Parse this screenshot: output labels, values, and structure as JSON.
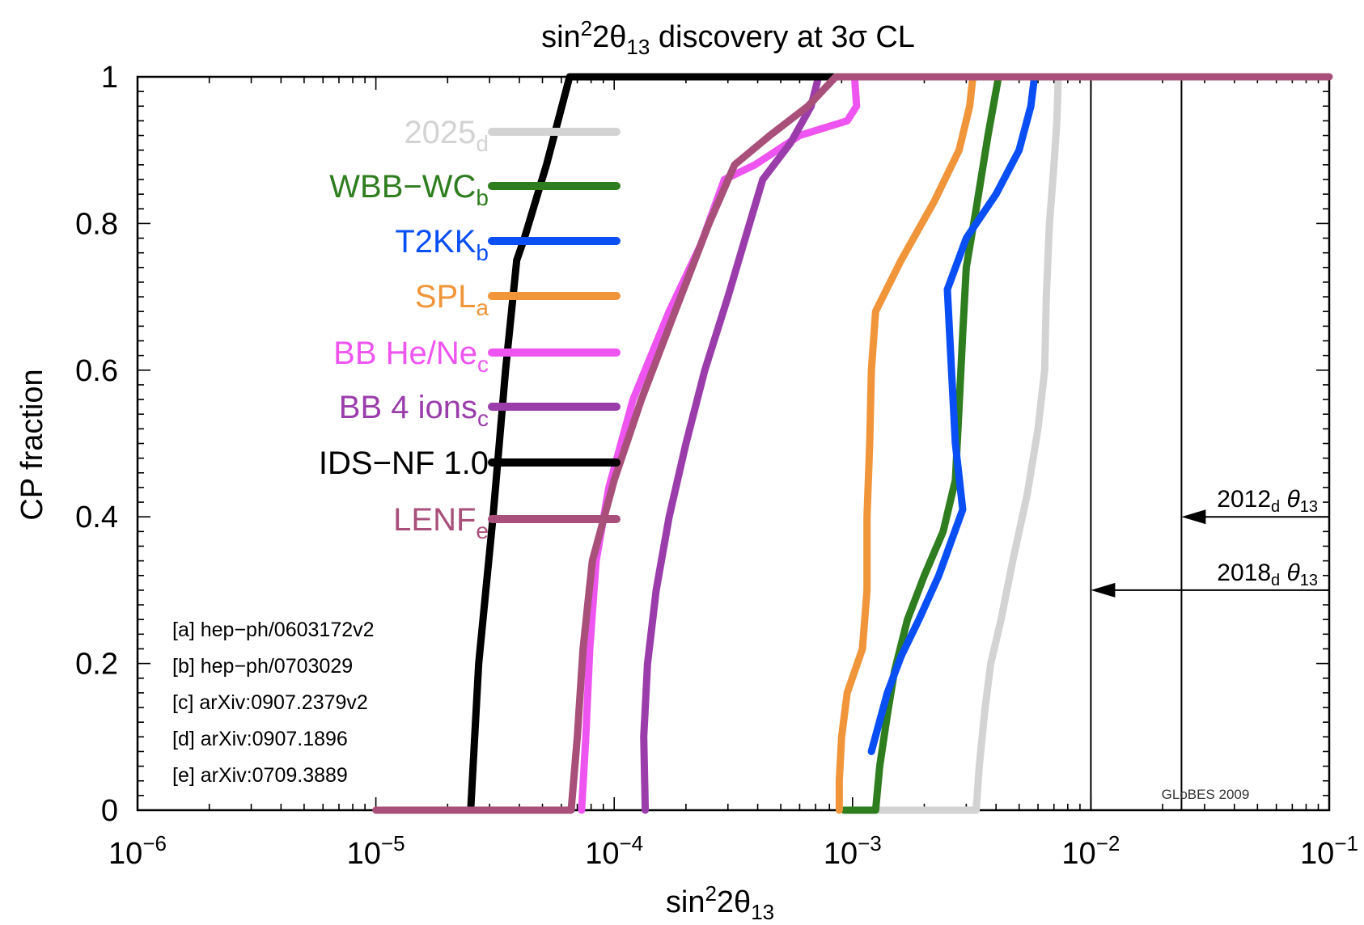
{
  "chart_data": {
    "type": "line",
    "title": {
      "pre": "sin",
      "sup": "2",
      "mid": "2θ",
      "sub": "13",
      "post": " discovery at 3σ CL"
    },
    "xlabel": {
      "pre": "sin",
      "sup": "2",
      "mid": "2θ",
      "sub": "13"
    },
    "ylabel": "CP fraction",
    "x_scale": "log",
    "xlim": [
      1e-06,
      0.1
    ],
    "ylim": [
      0,
      1
    ],
    "x_ticks": [
      {
        "base": "10",
        "exp": "−6",
        "value": 1e-06
      },
      {
        "base": "10",
        "exp": "−5",
        "value": 1e-05
      },
      {
        "base": "10",
        "exp": "−4",
        "value": 0.0001
      },
      {
        "base": "10",
        "exp": "−3",
        "value": 0.001
      },
      {
        "base": "10",
        "exp": "−2",
        "value": 0.01
      },
      {
        "base": "10",
        "exp": "−1",
        "value": 0.1
      }
    ],
    "y_ticks": [
      "0",
      "0.2",
      "0.4",
      "0.6",
      "0.8",
      "1"
    ],
    "legend_position": "left, inside plot",
    "series": [
      {
        "name": "2025",
        "sub": "d",
        "color": "#d3d3d3",
        "points": [
          [
            0.00105,
            0
          ],
          [
            0.0033,
            0
          ],
          [
            0.0034,
            0.06
          ],
          [
            0.0036,
            0.14
          ],
          [
            0.0038,
            0.2
          ],
          [
            0.0042,
            0.26
          ],
          [
            0.0047,
            0.34
          ],
          [
            0.0054,
            0.43
          ],
          [
            0.006,
            0.52
          ],
          [
            0.0064,
            0.6
          ],
          [
            0.0065,
            0.7
          ],
          [
            0.0067,
            0.8
          ],
          [
            0.007,
            0.88
          ],
          [
            0.0072,
            0.94
          ],
          [
            0.0073,
            1
          ]
        ]
      },
      {
        "name": "WBB−WC",
        "sub": "b",
        "color": "#2e7d1e",
        "points": [
          [
            0.00092,
            0
          ],
          [
            0.00125,
            0
          ],
          [
            0.0013,
            0.06
          ],
          [
            0.0014,
            0.13
          ],
          [
            0.0015,
            0.19
          ],
          [
            0.0017,
            0.26
          ],
          [
            0.002,
            0.32
          ],
          [
            0.0024,
            0.38
          ],
          [
            0.0027,
            0.45
          ],
          [
            0.0028,
            0.55
          ],
          [
            0.0029,
            0.65
          ],
          [
            0.003,
            0.74
          ],
          [
            0.0033,
            0.82
          ],
          [
            0.0037,
            0.92
          ],
          [
            0.0041,
            1
          ]
        ]
      },
      {
        "name": "T2KK",
        "sub": "b",
        "color": "#0a4ff5",
        "points": [
          [
            0.0012,
            0.08
          ],
          [
            0.0014,
            0.16
          ],
          [
            0.0016,
            0.21
          ],
          [
            0.0019,
            0.26
          ],
          [
            0.0023,
            0.32
          ],
          [
            0.0029,
            0.41
          ],
          [
            0.0027,
            0.5
          ],
          [
            0.0026,
            0.6
          ],
          [
            0.0025,
            0.71
          ],
          [
            0.003,
            0.78
          ],
          [
            0.004,
            0.84
          ],
          [
            0.005,
            0.9
          ],
          [
            0.0056,
            0.96
          ],
          [
            0.0058,
            1
          ]
        ]
      },
      {
        "name": "SPL",
        "sub": "a",
        "color": "#f0953a",
        "points": [
          [
            0.00088,
            0
          ],
          [
            0.00088,
            0.04
          ],
          [
            0.0009,
            0.1
          ],
          [
            0.00095,
            0.16
          ],
          [
            0.0011,
            0.22
          ],
          [
            0.00115,
            0.3
          ],
          [
            0.00115,
            0.4
          ],
          [
            0.00118,
            0.5
          ],
          [
            0.0012,
            0.6
          ],
          [
            0.00125,
            0.68
          ],
          [
            0.0016,
            0.75
          ],
          [
            0.0022,
            0.83
          ],
          [
            0.0028,
            0.9
          ],
          [
            0.0031,
            0.96
          ],
          [
            0.0032,
            1
          ]
        ]
      },
      {
        "name": "BB He/Ne",
        "sub": "c",
        "color": "#ee55f0",
        "points": [
          [
            7.3e-05,
            0
          ],
          [
            7.6e-05,
            0.1
          ],
          [
            7.9e-05,
            0.22
          ],
          [
            8.4e-05,
            0.34
          ],
          [
            9.5e-05,
            0.44
          ],
          [
            0.00012,
            0.56
          ],
          [
            0.00017,
            0.68
          ],
          [
            0.00023,
            0.77
          ],
          [
            0.00029,
            0.86
          ],
          [
            0.00039,
            0.88
          ],
          [
            0.0006,
            0.92
          ],
          [
            0.00095,
            0.94
          ],
          [
            0.00104,
            0.96
          ],
          [
            0.00102,
            1
          ]
        ]
      },
      {
        "name": "BB 4 ions",
        "sub": "c",
        "color": "#9a3dab",
        "points": [
          [
            0.000135,
            0
          ],
          [
            0.000133,
            0.1
          ],
          [
            0.000138,
            0.2
          ],
          [
            0.00015,
            0.3
          ],
          [
            0.00017,
            0.4
          ],
          [
            0.0002,
            0.5
          ],
          [
            0.00024,
            0.6
          ],
          [
            0.0003,
            0.7
          ],
          [
            0.00037,
            0.8
          ],
          [
            0.00042,
            0.86
          ],
          [
            0.00055,
            0.91
          ],
          [
            0.00067,
            0.96
          ],
          [
            0.00072,
            1
          ]
        ]
      },
      {
        "name": "IDS−NF 1.0",
        "sub": "",
        "color": "#000000",
        "points": [
          [
            2.5e-05,
            0
          ],
          [
            2.7e-05,
            0.2
          ],
          [
            3.1e-05,
            0.4
          ],
          [
            3.5e-05,
            0.6
          ],
          [
            3.9e-05,
            0.75
          ],
          [
            4.2e-05,
            0.78
          ],
          [
            5.2e-05,
            0.88
          ],
          [
            6.5e-05,
            1
          ],
          [
            0.00083,
            1
          ]
        ]
      },
      {
        "name": "LENF",
        "sub": "e",
        "color": "#a8507a",
        "points": [
          [
            1e-05,
            0
          ],
          [
            6.6e-05,
            0
          ],
          [
            7e-05,
            0.1
          ],
          [
            7.4e-05,
            0.22
          ],
          [
            8.1e-05,
            0.34
          ],
          [
            0.0001,
            0.45
          ],
          [
            0.00013,
            0.56
          ],
          [
            0.00018,
            0.68
          ],
          [
            0.00025,
            0.8
          ],
          [
            0.00032,
            0.88
          ],
          [
            0.00045,
            0.92
          ],
          [
            0.00065,
            0.96
          ],
          [
            0.00085,
            1
          ],
          [
            0.1,
            1
          ]
        ]
      }
    ],
    "vlines": [
      {
        "x": 0.01,
        "label": {
          "year": "2018",
          "sub": "d",
          "theta": " θ",
          "tsub": "13"
        },
        "arrow_y": 0.3
      },
      {
        "x": 0.024,
        "label": {
          "year": "2012",
          "sub": "d",
          "theta": " θ",
          "tsub": "13"
        },
        "arrow_y": 0.4
      }
    ],
    "references": [
      "[a] hep−ph/0603172v2",
      "[b] hep−ph/0703029",
      "[c] arXiv:0907.2379v2",
      "[d] arXiv:0907.1896",
      "[e] arXiv:0709.3889"
    ],
    "credit": "GLoBES 2009"
  }
}
